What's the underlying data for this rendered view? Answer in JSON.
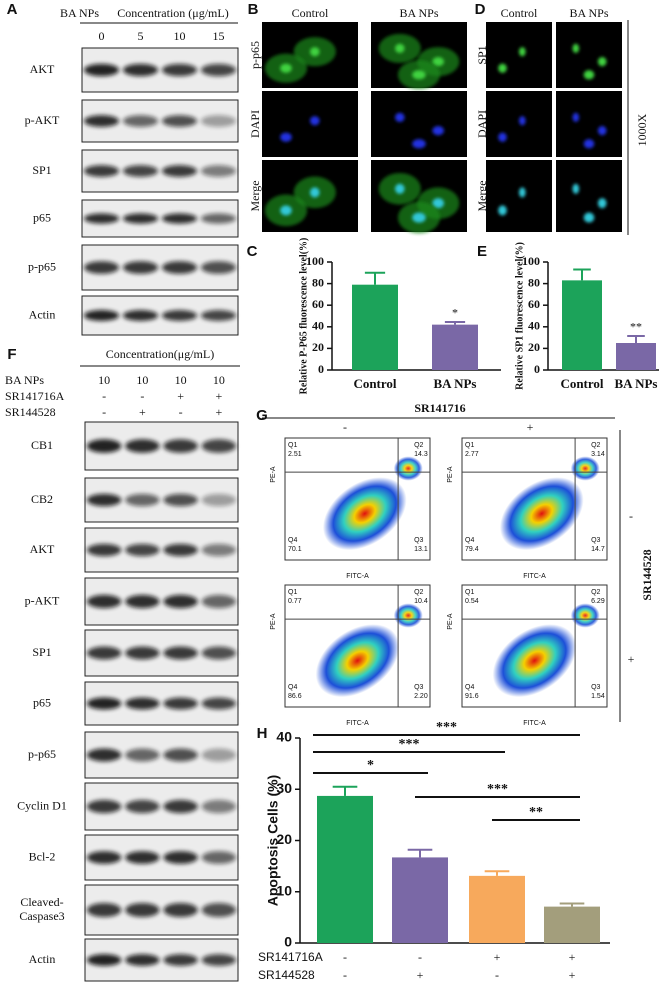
{
  "chart_data": [
    {
      "type": "bar",
      "panel": "C",
      "ylabel": "Relative P-P65 fluorescence level(%)",
      "categories": [
        "Control",
        "BA NPs"
      ],
      "values": [
        79,
        42
      ],
      "errors": [
        11,
        2.5
      ],
      "colors": [
        "#1ca35a",
        "#7a68a6"
      ],
      "ylim": [
        0,
        100
      ],
      "yticks": [
        0,
        20,
        40,
        60,
        80,
        100
      ],
      "significance": [
        {
          "label": "*",
          "category": 1
        }
      ]
    },
    {
      "type": "bar",
      "panel": "E",
      "ylabel": "Relative SP1 fluorescence level(%)",
      "categories": [
        "Control",
        "BA NPs"
      ],
      "values": [
        83,
        25
      ],
      "errors": [
        10,
        6.5
      ],
      "colors": [
        "#1ca35a",
        "#7a68a6"
      ],
      "ylim": [
        0,
        100
      ],
      "yticks": [
        0,
        20,
        40,
        60,
        80,
        100
      ],
      "significance": [
        {
          "label": "**",
          "category": 1
        }
      ]
    },
    {
      "type": "bar",
      "panel": "H",
      "ylabel": "Apoptosis Cells (%)",
      "categories": [
        null,
        null,
        null,
        null
      ],
      "values": [
        28.7,
        16.7,
        13.1,
        7.1
      ],
      "errors": [
        1.8,
        1.5,
        0.9,
        0.6
      ],
      "colors": [
        "#1ca35a",
        "#7a68a6",
        "#f7a95c",
        "#a39e7c"
      ],
      "ylim": [
        0,
        40
      ],
      "yticks": [
        0,
        10,
        20,
        30,
        40
      ],
      "brackets": [
        {
          "label": "***",
          "from": 0,
          "to": 3
        },
        {
          "label": "***",
          "from": 0,
          "to": 2
        },
        {
          "label": "*",
          "from": 0,
          "to": 1
        },
        {
          "label": "***",
          "from": 1,
          "to": 3
        },
        {
          "label": "**",
          "from": 2,
          "to": 3
        }
      ],
      "conditions": [
        {
          "name": "SR141716A",
          "marks": [
            "-",
            "-",
            "+",
            "+"
          ]
        },
        {
          "name": "SR144528",
          "marks": [
            "-",
            "+",
            "-",
            "+"
          ]
        }
      ]
    }
  ],
  "panel_A": {
    "label": "A",
    "treatment": "BA NPs",
    "header": "Concentration (μg/mL)",
    "concentrations": [
      "0",
      "5",
      "10",
      "15"
    ],
    "blots": [
      "AKT",
      "p-AKT",
      "SP1",
      "p65",
      "p-p65",
      "Actin"
    ]
  },
  "panel_B": {
    "label": "B",
    "columns": [
      "Control",
      "BA NPs"
    ],
    "rows": [
      "p-p65",
      "DAPI",
      "Merge"
    ]
  },
  "panel_D": {
    "label": "D",
    "columns": [
      "Control",
      "BA NPs"
    ],
    "rows": [
      "SP1",
      "DAPI",
      "Merge"
    ],
    "magnification": "1000X"
  },
  "panel_F": {
    "label": "F",
    "header": "Concentration(μg/mL)",
    "conditions": [
      {
        "name": "BA NPs",
        "marks": [
          "10",
          "10",
          "10",
          "10"
        ]
      },
      {
        "name": "SR141716A",
        "marks": [
          "-",
          "-",
          "+",
          "+"
        ]
      },
      {
        "name": "SR144528",
        "marks": [
          "-",
          "+",
          "-",
          "+"
        ]
      }
    ],
    "blots": [
      "CB1",
      "CB2",
      "AKT",
      "p-AKT",
      "SP1",
      "p65",
      "p-p65",
      "Cyclin D1",
      "Bcl-2",
      [
        "Cleaved-",
        "Caspase3"
      ],
      "Actin"
    ]
  },
  "panel_G": {
    "label": "G",
    "column_factor": "SR141716",
    "column_marks": [
      "-",
      "+"
    ],
    "row_factor": "SR144528",
    "row_marks": [
      "-",
      "+"
    ],
    "x_label": "FITC-A",
    "y_label": "PE-A",
    "quadrant_names": [
      "Q1",
      "Q2",
      "Q3",
      "Q4"
    ],
    "plots": [
      [
        "2.51",
        "14.3",
        "13.1",
        "70.1"
      ],
      [
        "2.77",
        "3.14",
        "14.7",
        "79.4"
      ],
      [
        "0.77",
        "10.4",
        "2.20",
        "86.6"
      ],
      [
        "0.54",
        "6.29",
        "1.54",
        "91.6"
      ]
    ]
  }
}
